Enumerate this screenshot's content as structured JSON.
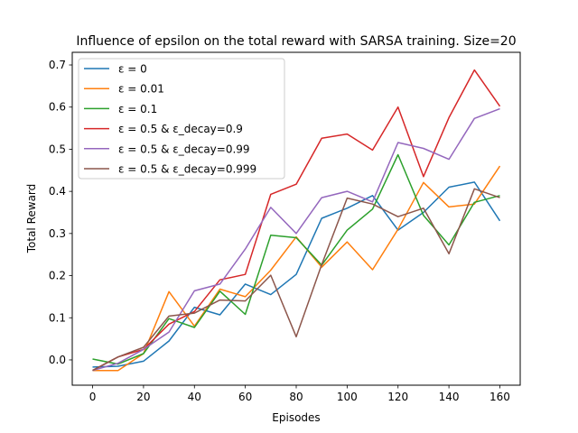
{
  "chart_data": {
    "type": "line",
    "title": "Influence of epsilon on the total reward with SARSA training. Size=20",
    "xlabel": "Episodes",
    "ylabel": "Total Reward",
    "xlim": [
      -8,
      168
    ],
    "ylim": [
      -0.06,
      0.73
    ],
    "xticks": [
      0,
      20,
      40,
      60,
      80,
      100,
      120,
      140,
      160
    ],
    "yticks": [
      0.0,
      0.1,
      0.2,
      0.3,
      0.4,
      0.5,
      0.6,
      0.7
    ],
    "ytick_labels": [
      "0.0",
      "0.1",
      "0.2",
      "0.3",
      "0.4",
      "0.5",
      "0.6",
      "0.7"
    ],
    "grid": false,
    "legend_position": "top-left",
    "x": [
      0,
      10,
      20,
      30,
      40,
      50,
      60,
      70,
      80,
      90,
      100,
      110,
      120,
      130,
      140,
      150,
      160
    ],
    "series": [
      {
        "name": "ε = 0",
        "color": "#1f77b4",
        "values": [
          -0.017,
          -0.015,
          -0.003,
          0.045,
          0.125,
          0.107,
          0.18,
          0.155,
          0.203,
          0.336,
          0.36,
          0.39,
          0.308,
          0.35,
          0.41,
          0.422,
          0.33
        ]
      },
      {
        "name": "ε = 0.01",
        "color": "#ff7f0e",
        "values": [
          -0.025,
          -0.025,
          0.015,
          0.162,
          0.08,
          0.168,
          0.15,
          0.213,
          0.292,
          0.22,
          0.28,
          0.214,
          0.31,
          0.421,
          0.363,
          0.37,
          0.46
        ]
      },
      {
        "name": "ε = 0.1",
        "color": "#2ca02c",
        "values": [
          0.002,
          -0.01,
          0.015,
          0.098,
          0.077,
          0.163,
          0.108,
          0.296,
          0.29,
          0.225,
          0.308,
          0.358,
          0.487,
          0.343,
          0.273,
          0.374,
          0.39
        ]
      },
      {
        "name": "ε = 0.5 & ε_decay=0.9",
        "color": "#d62728",
        "values": [
          -0.025,
          0.007,
          0.025,
          0.085,
          0.115,
          0.19,
          0.203,
          0.393,
          0.417,
          0.526,
          0.536,
          0.498,
          0.6,
          0.435,
          0.575,
          0.688,
          0.602
        ]
      },
      {
        "name": "ε = 0.5 & ε_decay=0.99",
        "color": "#9467bd",
        "values": [
          -0.025,
          -0.008,
          0.025,
          0.066,
          0.164,
          0.18,
          0.263,
          0.362,
          0.3,
          0.385,
          0.4,
          0.375,
          0.516,
          0.502,
          0.476,
          0.573,
          0.596
        ]
      },
      {
        "name": "ε = 0.5 & ε_decay=0.999",
        "color": "#8c564b",
        "values": [
          -0.025,
          0.007,
          0.03,
          0.104,
          0.111,
          0.142,
          0.14,
          0.201,
          0.055,
          0.226,
          0.384,
          0.37,
          0.34,
          0.36,
          0.252,
          0.406,
          0.385
        ]
      }
    ]
  }
}
